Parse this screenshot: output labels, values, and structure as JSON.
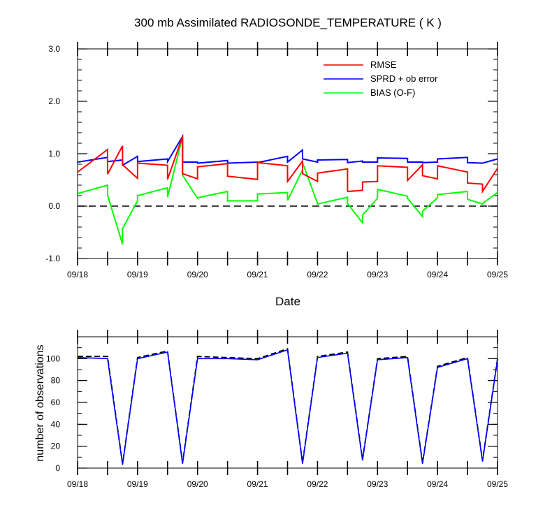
{
  "colors": {
    "rmse": "#ff0000",
    "spread": "#0000ff",
    "bias": "#00ff00",
    "counts_line": "#000000",
    "counts_used": "#0000ff"
  },
  "chart_data": [
    {
      "type": "line",
      "title": "300 mb Assimilated RADIOSONDE_TEMPERATURE ( K )",
      "xlabel": "Date",
      "ylabel": "",
      "xlim": [
        "2011-09-18 00:00",
        "2011-09-25 00:00"
      ],
      "ylim": [
        -1.0,
        3.0
      ],
      "ytick_labels": [
        "-1.0",
        "0.0",
        "1.0",
        "2.0",
        "3.0"
      ],
      "xtick_labels": [
        "09/18",
        "09/19",
        "09/20",
        "09/21",
        "09/22",
        "09/23",
        "09/24",
        "09/25"
      ],
      "zero_line": "dashed",
      "legend_position": "top-right",
      "x": [
        "2011-09-18 00:00",
        "2011-09-18 12:00",
        "2011-09-18 18:00",
        "2011-09-19 00:00",
        "2011-09-19 12:00",
        "2011-09-19 18:00",
        "2011-09-20 00:00",
        "2011-09-20 12:00",
        "2011-09-21 00:00",
        "2011-09-21 12:00",
        "2011-09-21 18:00",
        "2011-09-22 00:00",
        "2011-09-22 12:00",
        "2011-09-22 18:00",
        "2011-09-23 00:00",
        "2011-09-23 12:00",
        "2011-09-23 18:00",
        "2011-09-24 00:00",
        "2011-09-24 12:00",
        "2011-09-24 18:00",
        "2011-09-25 00:00"
      ],
      "series": [
        {
          "name": "RMSE",
          "color_key": "rmse",
          "values": [
            0.65,
            1.08,
            1.15,
            0.53,
            0.78,
            1.33,
            0.52,
            0.81,
            0.51,
            0.77,
            0.86,
            0.47,
            0.71,
            0.3,
            0.47,
            0.74,
            0.79,
            0.52,
            0.65,
            0.42,
            0.72
          ],
          "reset": [
            null,
            0.61,
            0.79,
            0.82,
            0.51,
            0.62,
            0.75,
            0.57,
            0.83,
            0.47,
            0.62,
            0.63,
            0.28,
            0.46,
            0.77,
            0.49,
            0.58,
            0.77,
            0.44,
            0.28,
            null
          ]
        },
        {
          "name": "SPRD + ob error",
          "color_key": "spread",
          "values": [
            0.84,
            0.93,
            0.88,
            0.95,
            0.9,
            1.33,
            0.84,
            0.87,
            0.84,
            0.95,
            1.07,
            0.84,
            0.89,
            0.86,
            0.84,
            0.91,
            0.84,
            0.84,
            0.93,
            0.82,
            0.9
          ],
          "reset": [
            null,
            0.85,
            0.78,
            0.85,
            0.85,
            0.84,
            0.82,
            0.82,
            0.83,
            0.84,
            0.9,
            0.88,
            0.83,
            0.84,
            0.92,
            0.84,
            0.83,
            0.9,
            0.83,
            0.82,
            null
          ]
        },
        {
          "name": "BIAS (O-F)",
          "color_key": "bias",
          "values": [
            0.24,
            0.4,
            -0.73,
            0.1,
            0.35,
            1.33,
            0.15,
            0.28,
            0.1,
            0.26,
            0.69,
            0.05,
            0.17,
            -0.32,
            0.15,
            0.19,
            -0.2,
            0.16,
            0.28,
            0.04,
            0.26
          ],
          "reset": [
            null,
            0.21,
            -0.43,
            0.2,
            0.17,
            0.59,
            0.16,
            0.1,
            0.23,
            0.11,
            0.83,
            0.04,
            0.05,
            -0.17,
            0.32,
            0.15,
            -0.1,
            0.22,
            0.13,
            0.05,
            null
          ]
        }
      ]
    },
    {
      "type": "line",
      "title": "",
      "xlabel": "",
      "ylabel": "number of observations",
      "xlim": [
        "2011-09-18 00:00",
        "2011-09-25 00:00"
      ],
      "ylim": [
        0,
        120
      ],
      "ytick_labels": [
        "0",
        "20",
        "40",
        "60",
        "80",
        "100"
      ],
      "xtick_labels": [
        "09/18",
        "09/19",
        "09/20",
        "09/21",
        "09/22",
        "09/23",
        "09/24",
        "09/25"
      ],
      "x": [
        "2011-09-18 00:00",
        "2011-09-18 12:00",
        "2011-09-18 18:00",
        "2011-09-19 00:00",
        "2011-09-19 12:00",
        "2011-09-19 18:00",
        "2011-09-20 00:00",
        "2011-09-20 12:00",
        "2011-09-21 00:00",
        "2011-09-21 12:00",
        "2011-09-21 18:00",
        "2011-09-22 00:00",
        "2011-09-22 12:00",
        "2011-09-22 18:00",
        "2011-09-23 00:00",
        "2011-09-23 12:00",
        "2011-09-23 18:00",
        "2011-09-24 00:00",
        "2011-09-24 12:00",
        "2011-09-24 18:00",
        "2011-09-25 00:00"
      ],
      "series": [
        {
          "color_key": "counts_line",
          "dash": "dashed",
          "values": [
            102,
            102,
            4,
            101,
            107,
            5,
            102,
            101,
            100,
            109,
            5,
            102,
            106,
            8,
            100,
            102,
            5,
            93,
            101,
            7,
            100
          ]
        },
        {
          "color_key": "counts_used",
          "dash": "solid",
          "values": [
            101,
            100,
            3,
            100,
            106,
            4,
            100,
            100,
            99,
            108,
            4,
            101,
            105,
            7,
            99,
            101,
            4,
            92,
            100,
            6,
            99
          ]
        }
      ]
    }
  ]
}
